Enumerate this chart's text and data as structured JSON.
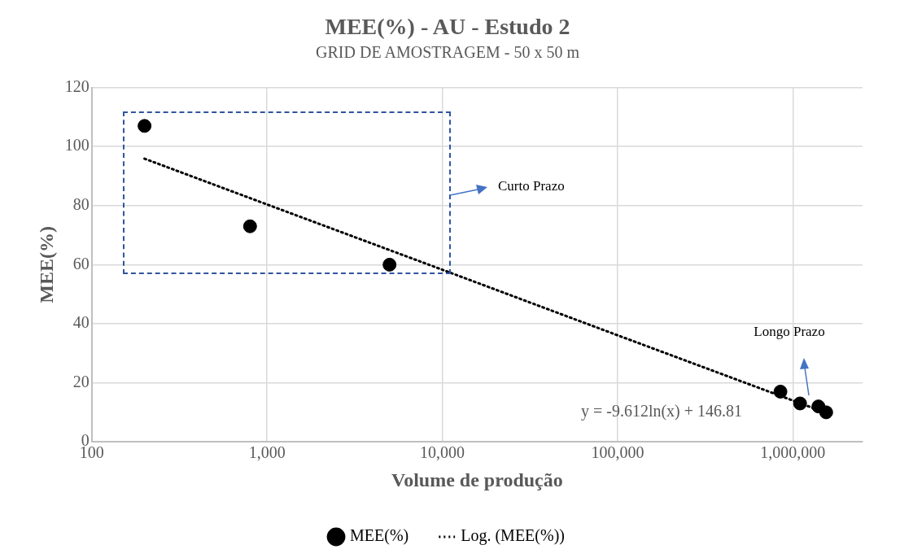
{
  "chart_data": {
    "type": "scatter",
    "title": "MEE(%) - AU - Estudo 2",
    "subtitle": "GRID DE AMOSTRAGEM - 50 x 50 m",
    "xlabel": "Volume de produção",
    "ylabel": "MEE(%)",
    "annotations": [
      "Curto Prazo",
      "Longo Prazo",
      "y = -9.612ln(x) + 146.81"
    ],
    "series": [
      {
        "name": "MEE(%)",
        "color": "#000000",
        "marker": "circle",
        "x": [
          200,
          800,
          5000,
          850000,
          1100000,
          1400000,
          1550000
        ],
        "values": [
          107,
          73,
          60,
          17,
          13,
          12,
          10
        ]
      },
      {
        "name": "Log. (MEE(%))",
        "type": "line",
        "color": "#000000",
        "marker": "none",
        "line_style": "dotted",
        "x": [
          200,
          1000,
          10000,
          100000,
          1000000,
          1550000
        ],
        "values": [
          95.9,
          80.4,
          58.3,
          36.1,
          14.0,
          9.8
        ]
      }
    ],
    "log": "x",
    "xlim": [
      100,
      2500000
    ],
    "xticks": [
      100,
      {
        "value": 1000,
        "label": "1,000"
      },
      {
        "value": 10000,
        "label": "10,000"
      },
      {
        "value": 100000,
        "label": "100,000"
      },
      {
        "value": 1000000,
        "label": "1,000,000"
      }
    ],
    "ylim": [
      0,
      120
    ],
    "yticks": [
      0,
      20,
      40,
      60,
      80,
      100,
      120
    ],
    "grid": true,
    "legend": "bottom"
  }
}
